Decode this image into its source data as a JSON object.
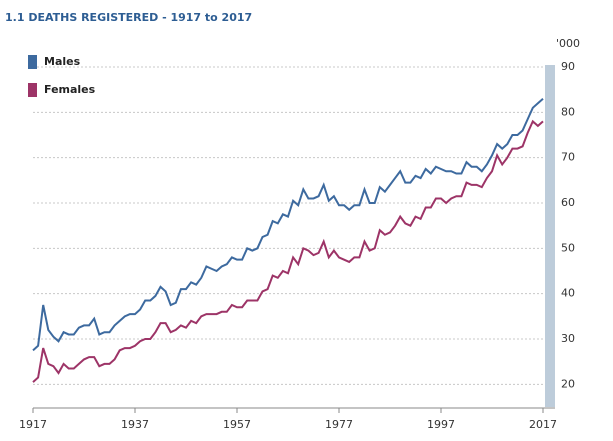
{
  "chart_data": {
    "type": "line",
    "title": "1.1 DEATHS REGISTERED - 1917 to 2017",
    "y_unit": "'000",
    "x": [
      1917,
      1918,
      1919,
      1920,
      1921,
      1922,
      1923,
      1924,
      1925,
      1926,
      1927,
      1928,
      1929,
      1930,
      1931,
      1932,
      1933,
      1934,
      1935,
      1936,
      1937,
      1938,
      1939,
      1940,
      1941,
      1942,
      1943,
      1944,
      1945,
      1946,
      1947,
      1948,
      1949,
      1950,
      1951,
      1952,
      1953,
      1954,
      1955,
      1956,
      1957,
      1958,
      1959,
      1960,
      1961,
      1962,
      1963,
      1964,
      1965,
      1966,
      1967,
      1968,
      1969,
      1970,
      1971,
      1972,
      1973,
      1974,
      1975,
      1976,
      1977,
      1978,
      1979,
      1980,
      1981,
      1982,
      1983,
      1984,
      1985,
      1986,
      1987,
      1988,
      1989,
      1990,
      1991,
      1992,
      1993,
      1994,
      1995,
      1996,
      1997,
      1998,
      1999,
      2000,
      2001,
      2002,
      2003,
      2004,
      2005,
      2006,
      2007,
      2008,
      2009,
      2010,
      2011,
      2012,
      2013,
      2014,
      2015,
      2016,
      2017
    ],
    "series": [
      {
        "name": "Males",
        "color": "#3d6a9f",
        "values": [
          27.5,
          28.5,
          37.5,
          32,
          30.5,
          29.5,
          31.5,
          31,
          31,
          32.5,
          33,
          33,
          34.5,
          31,
          31.5,
          31.5,
          33,
          34,
          35,
          35.5,
          35.5,
          36.5,
          38.5,
          38.5,
          39.5,
          41.5,
          40.5,
          37.5,
          38,
          41,
          41,
          42.5,
          42,
          43.5,
          46,
          45.5,
          45,
          46,
          46.5,
          48,
          47.5,
          47.5,
          50,
          49.5,
          50,
          52.5,
          53,
          56,
          55.5,
          57.5,
          57,
          60.5,
          59.5,
          63,
          61,
          61,
          61.5,
          64,
          60.5,
          61.5,
          59.5,
          59.5,
          58.5,
          59.5,
          59.5,
          63,
          60,
          60,
          63.5,
          62.5,
          64,
          65.5,
          67,
          64.5,
          64.5,
          66,
          65.5,
          67.5,
          66.5,
          68,
          67.5,
          67,
          67,
          66.5,
          66.5,
          69,
          68,
          68,
          67,
          68.5,
          70.5,
          73,
          72,
          73,
          75,
          75,
          76,
          78.5,
          81,
          82,
          83
        ]
      },
      {
        "name": "Females",
        "color": "#9d3467",
        "values": [
          20.5,
          21.5,
          28,
          24.5,
          24,
          22.5,
          24.5,
          23.5,
          23.5,
          24.5,
          25.5,
          26,
          26,
          24,
          24.5,
          24.5,
          25.5,
          27.5,
          28,
          28,
          28.5,
          29.5,
          30,
          30,
          31.5,
          33.5,
          33.5,
          31.5,
          32,
          33,
          32.5,
          34,
          33.5,
          35,
          35.5,
          35.5,
          35.5,
          36,
          36,
          37.5,
          37,
          37,
          38.5,
          38.5,
          38.5,
          40.5,
          41,
          44,
          43.5,
          45,
          44.5,
          48,
          46.5,
          50,
          49.5,
          48.5,
          49,
          51.5,
          48,
          49.5,
          48,
          47.5,
          47,
          48,
          48,
          51.5,
          49.5,
          50,
          54,
          53,
          53.5,
          55,
          57,
          55.5,
          55,
          57,
          56.5,
          59,
          59,
          61,
          61,
          60,
          61,
          61.5,
          61.5,
          64.5,
          64,
          64,
          63.5,
          65.5,
          67,
          70.5,
          68.5,
          70,
          72,
          72,
          72.5,
          75.5,
          78,
          77,
          78
        ]
      }
    ],
    "xlim": [
      1917,
      2017
    ],
    "xticks": [
      1917,
      1937,
      1957,
      1977,
      1997,
      2017
    ],
    "ylim": [
      15,
      90
    ],
    "yticks": [
      20,
      30,
      40,
      50,
      60,
      70,
      80,
      90
    ],
    "grid": true,
    "legend": "top-left"
  }
}
